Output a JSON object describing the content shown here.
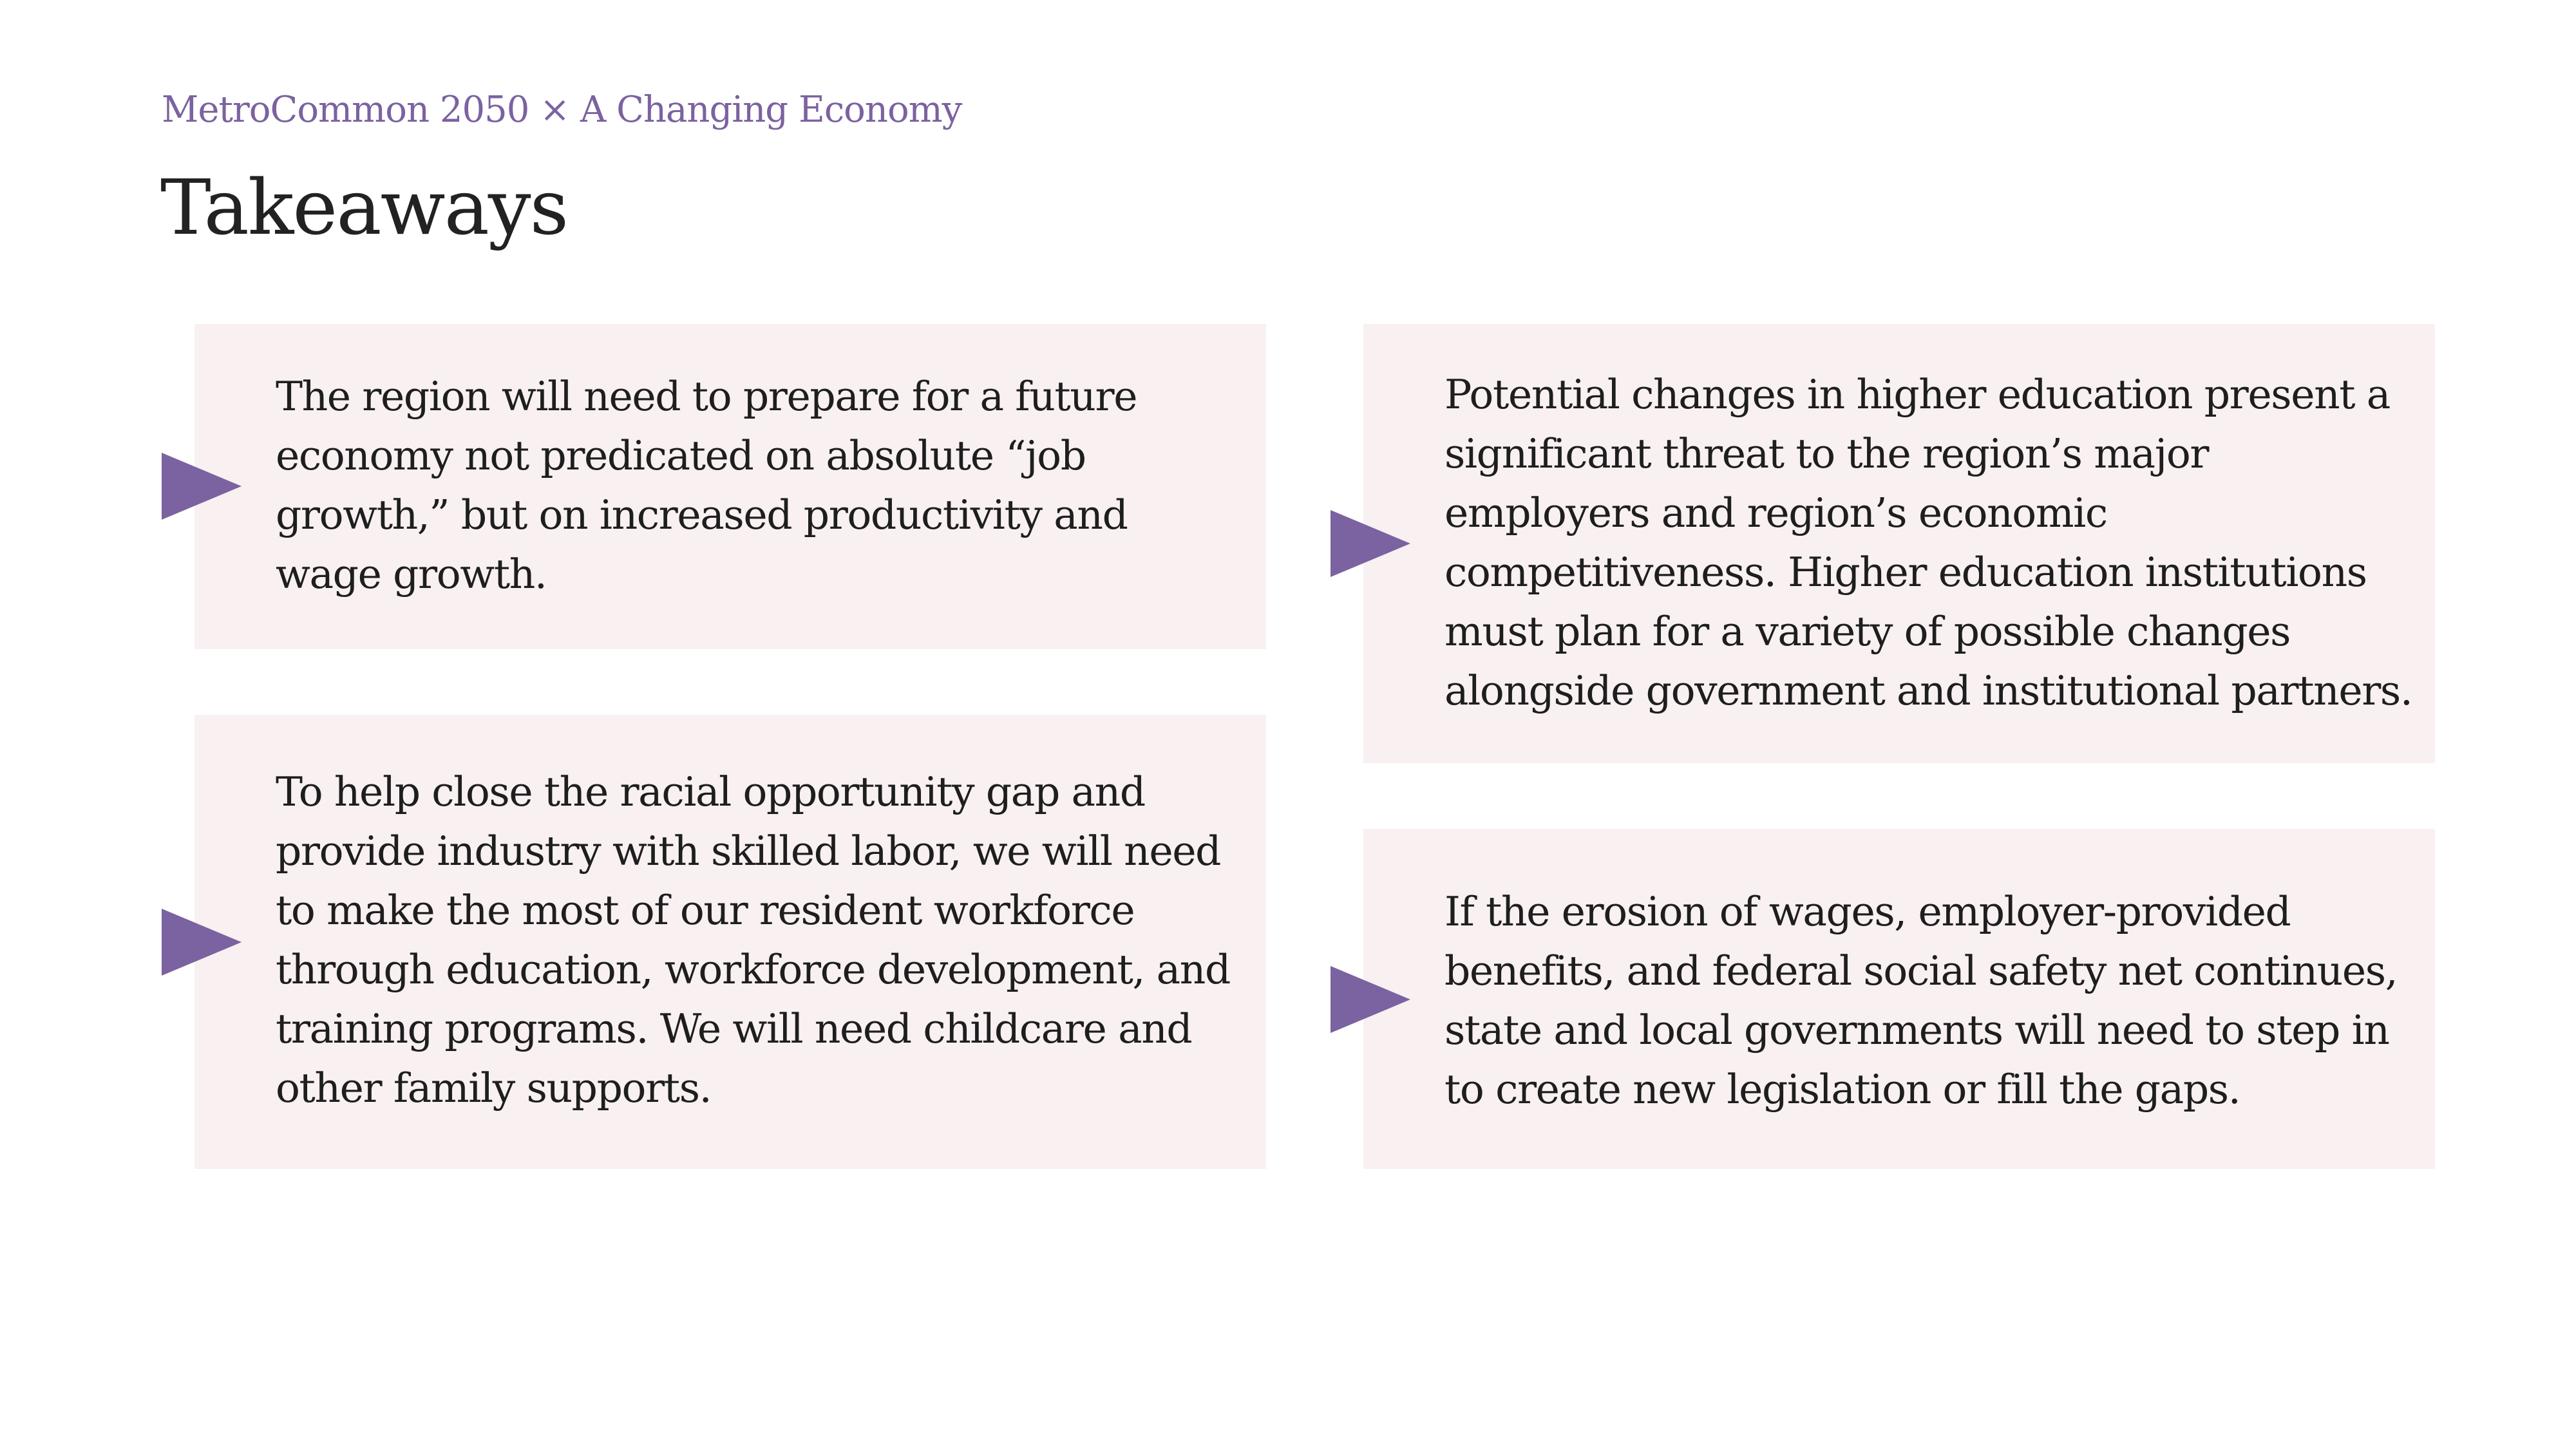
{
  "header": {
    "subtitle": "MetroCommon 2050 × A Changing Economy",
    "title": "Takeaways"
  },
  "colors": {
    "accent": "#7b62a0",
    "card_background": "#f8f0f1",
    "text": "#1e1e1e"
  },
  "takeaways": [
    {
      "icon": "triangle-arrow-icon",
      "text": "The region will need to prepare for a future economy not predicated on absolute “job growth,” but on increased productivity and wage growth."
    },
    {
      "icon": "triangle-arrow-icon",
      "text": "To help close the racial opportunity gap and provide industry with skilled labor, we will need to make the most of our resident workforce through education, workforce development, and training programs. We will need childcare and other family supports."
    },
    {
      "icon": "triangle-arrow-icon",
      "text": "Potential changes in higher education present a significant threat to the region’s major employers and region’s economic competitiveness. Higher education institutions must plan for a variety of possible changes alongside government and institutional partners."
    },
    {
      "icon": "triangle-arrow-icon",
      "text": "If the erosion of wages, employer-provided benefits, and federal social safety net continues, state and local governments will need to step in to create new legislation or fill the gaps."
    }
  ]
}
